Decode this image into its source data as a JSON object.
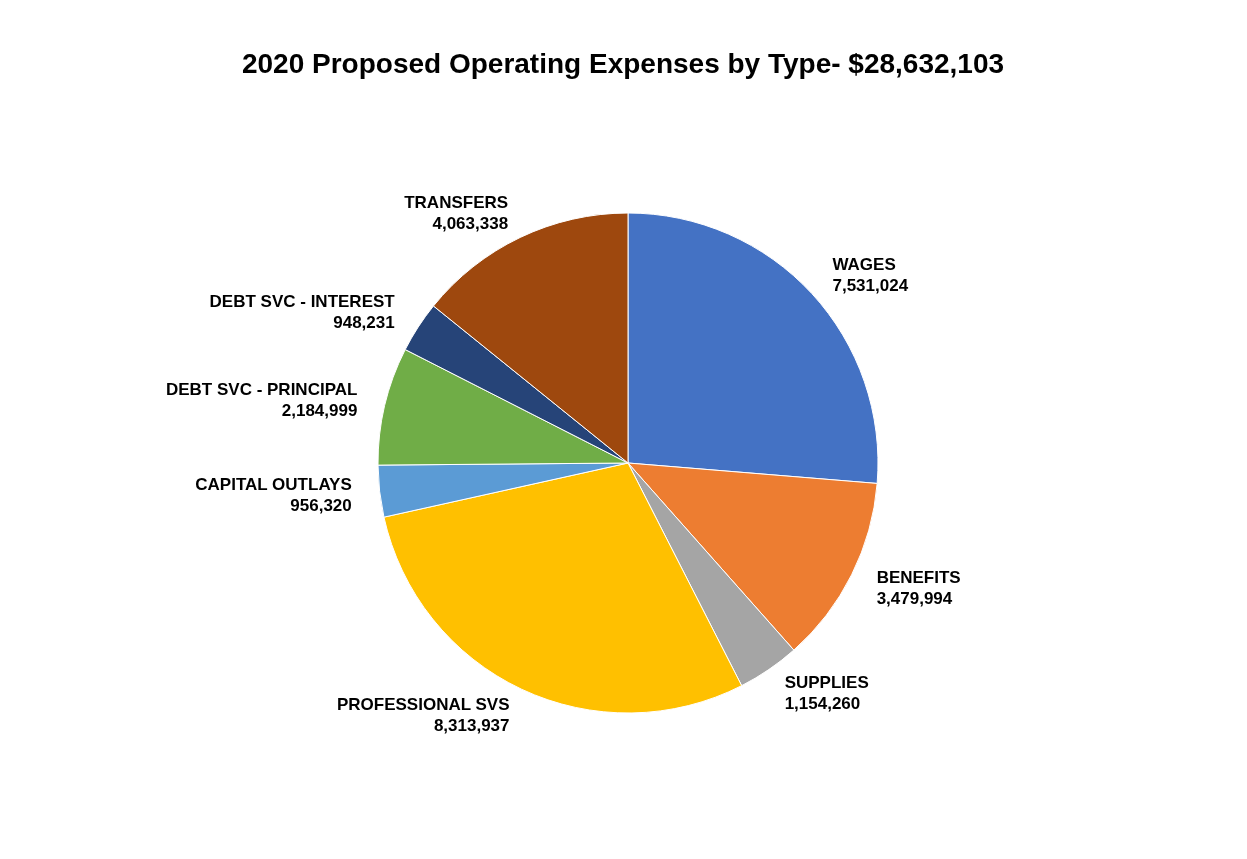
{
  "chart_data": {
    "type": "pie",
    "title": "2020 Proposed Operating Expenses by Type- $28,632,103",
    "categories": [
      "WAGES",
      "BENEFITS",
      "SUPPLIES",
      "PROFESSIONAL SVS",
      "CAPITAL OUTLAYS",
      "DEBT SVC - PRINCIPAL",
      "DEBT SVC - INTEREST",
      "TRANSFERS"
    ],
    "values": [
      7531024,
      3479994,
      1154260,
      8313937,
      956320,
      2184999,
      948231,
      4063338
    ],
    "colors": [
      "#4472c4",
      "#ed7d31",
      "#a5a5a5",
      "#ffc000",
      "#5b9bd5",
      "#70ad47",
      "#264478",
      "#9e480e"
    ],
    "value_labels": [
      "7,531,024",
      "3,479,994",
      "1,154,260",
      "8,313,937",
      "956,320",
      "2,184,999",
      "948,231",
      "4,063,338"
    ]
  }
}
